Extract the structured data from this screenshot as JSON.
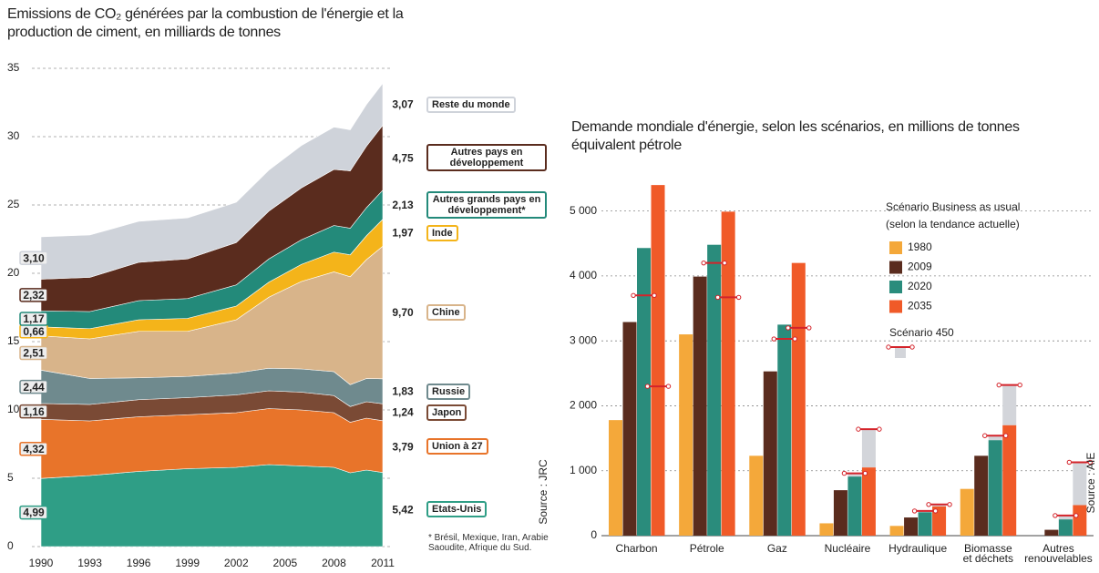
{
  "chart_data": [
    {
      "type": "area",
      "stacked": true,
      "title": "Emissions de CO₂ générées par la combustion de l'énergie et la production de ciment, en milliards de tonnes",
      "x": [
        1990,
        1993,
        1996,
        1999,
        2002,
        2004,
        2006,
        2008,
        2009,
        2010,
        2011
      ],
      "xlim": [
        1990,
        2011
      ],
      "xticks": [
        1990,
        1993,
        1996,
        1999,
        2002,
        2005,
        2008,
        2011
      ],
      "ylim": [
        0,
        35
      ],
      "yticks": [
        0,
        5,
        10,
        15,
        20,
        25,
        30,
        35
      ],
      "grid": true,
      "series": [
        {
          "name": "Etats-Unis",
          "color": "#2f9e86",
          "values": [
            4.99,
            5.2,
            5.5,
            5.7,
            5.8,
            6.0,
            5.9,
            5.8,
            5.4,
            5.6,
            5.42
          ],
          "value_labels": [
            "4,99",
            null,
            null,
            null,
            null,
            null,
            null,
            null,
            null,
            null,
            "5,42"
          ]
        },
        {
          "name": "Union à 27",
          "color": "#e8742a",
          "values": [
            4.32,
            4.0,
            4.0,
            3.95,
            4.0,
            4.1,
            4.1,
            4.0,
            3.7,
            3.8,
            3.79
          ],
          "value_labels": [
            "4,32",
            null,
            null,
            null,
            null,
            null,
            null,
            null,
            null,
            null,
            "3,79"
          ]
        },
        {
          "name": "Japon",
          "color": "#7a4a35",
          "values": [
            1.16,
            1.2,
            1.25,
            1.25,
            1.3,
            1.3,
            1.3,
            1.25,
            1.15,
            1.2,
            1.24
          ],
          "value_labels": [
            "1,16",
            null,
            null,
            null,
            null,
            null,
            null,
            null,
            null,
            null,
            "1,24"
          ]
        },
        {
          "name": "Russie",
          "color": "#6f8a8e",
          "values": [
            2.44,
            1.9,
            1.6,
            1.55,
            1.6,
            1.65,
            1.7,
            1.75,
            1.6,
            1.7,
            1.83
          ],
          "value_labels": [
            "2,44",
            null,
            null,
            null,
            null,
            null,
            null,
            null,
            null,
            null,
            "1,83"
          ]
        },
        {
          "name": "Chine",
          "color": "#d8b48a",
          "values": [
            2.51,
            2.9,
            3.4,
            3.3,
            3.9,
            5.2,
            6.4,
            7.3,
            7.9,
            8.7,
            9.7
          ],
          "value_labels": [
            "2,51",
            null,
            null,
            null,
            null,
            null,
            null,
            null,
            null,
            null,
            "9,70"
          ]
        },
        {
          "name": "Inde",
          "color": "#f4b41a",
          "values": [
            0.66,
            0.75,
            0.85,
            0.95,
            1.0,
            1.1,
            1.25,
            1.45,
            1.6,
            1.75,
            1.97
          ],
          "value_labels": [
            "0,66",
            null,
            null,
            null,
            null,
            null,
            null,
            null,
            null,
            null,
            "1,97"
          ]
        },
        {
          "name": "Autres grands pays en développement*",
          "color": "#238a7a",
          "values": [
            1.17,
            1.25,
            1.4,
            1.45,
            1.55,
            1.7,
            1.8,
            1.95,
            1.95,
            2.05,
            2.13
          ],
          "value_labels": [
            "1,17",
            null,
            null,
            null,
            null,
            null,
            null,
            null,
            null,
            null,
            "2,13"
          ]
        },
        {
          "name": "Autres pays en développement",
          "color": "#5a2c1e",
          "values": [
            2.32,
            2.5,
            2.8,
            2.9,
            3.1,
            3.5,
            3.8,
            4.1,
            4.2,
            4.5,
            4.75
          ],
          "value_labels": [
            "2,32",
            null,
            null,
            null,
            null,
            null,
            null,
            null,
            null,
            null,
            "4,75"
          ]
        },
        {
          "name": "Reste du monde",
          "color": "#cfd3da",
          "values": [
            3.1,
            3.1,
            3.0,
            3.0,
            2.95,
            3.0,
            3.1,
            3.1,
            3.0,
            3.05,
            3.07
          ],
          "value_labels": [
            "3,10",
            null,
            null,
            null,
            null,
            null,
            null,
            null,
            null,
            null,
            "3,07"
          ]
        }
      ],
      "footnote": "* Brésil, Mexique, Iran, Arabie Saoudite, Afrique du Sud.",
      "source": "Source : JRC"
    },
    {
      "type": "bar",
      "title": "Demande mondiale d'énergie, selon les scénarios, en millions de tonnes équivalent pétrole",
      "categories": [
        [
          "Charbon"
        ],
        [
          "Pétrole"
        ],
        [
          "Gaz"
        ],
        [
          "Nucléaire"
        ],
        [
          "Hydraulique"
        ],
        [
          "Biomasse",
          "et déchets"
        ],
        [
          "Autres",
          "renouvelables"
        ]
      ],
      "ylim": [
        0,
        5500
      ],
      "yticks": [
        0,
        {
          "value": 1000,
          "label": "1 000"
        },
        {
          "value": 2000,
          "label": "2 000"
        },
        {
          "value": 3000,
          "label": "3 000"
        },
        {
          "value": 4000,
          "label": "4 000"
        },
        {
          "value": 5000,
          "label": "5 000"
        }
      ],
      "grid": true,
      "legend_title": [
        "Scénario Business as usual",
        "(selon la tendance actuelle)"
      ],
      "series": [
        {
          "name": "1980",
          "color": "#f4a83a",
          "values": [
            1780,
            3100,
            1230,
            190,
            150,
            720,
            0
          ]
        },
        {
          "name": "2009",
          "color": "#5a2c1e",
          "values": [
            3290,
            3990,
            2530,
            700,
            280,
            1230,
            90
          ]
        },
        {
          "name": "2020",
          "color": "#2a8c7c",
          "values": [
            4430,
            4480,
            3250,
            910,
            360,
            1470,
            250
          ]
        },
        {
          "name": "2035",
          "color": "#f05a28",
          "values": [
            5400,
            4990,
            4200,
            1050,
            450,
            1700,
            470
          ]
        }
      ],
      "scenario": {
        "name": "Scénario 450",
        "color": "#d4232a",
        "values_2020": [
          3700,
          4200,
          3030,
          960,
          380,
          1540,
          310
        ],
        "values_2035": [
          2300,
          3670,
          3200,
          1640,
          480,
          2320,
          1130
        ]
      },
      "source": "Source : AIE"
    }
  ]
}
